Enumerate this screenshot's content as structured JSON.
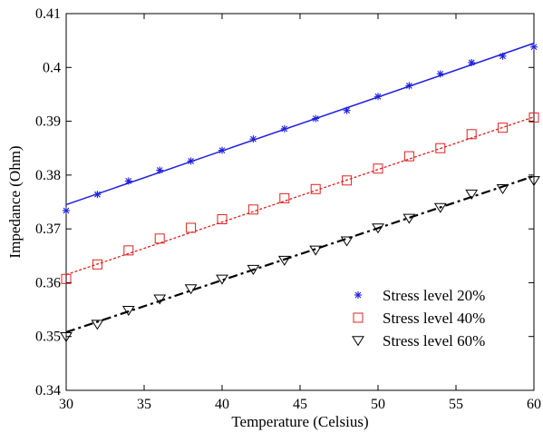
{
  "chart_data": {
    "type": "scatter",
    "title": "",
    "xlabel": "Temperature (Celsius)",
    "ylabel": "Impedance (Ohm)",
    "xlim": [
      30,
      60
    ],
    "ylim": [
      0.34,
      0.41
    ],
    "xticks": [
      30,
      35,
      40,
      45,
      50,
      55,
      60
    ],
    "xtick_labels": [
      "30",
      "35",
      "40",
      "45",
      "50",
      "55",
      "60"
    ],
    "yticks": [
      0.34,
      0.35,
      0.36,
      0.37,
      0.38,
      0.39,
      0.4,
      0.41
    ],
    "ytick_labels": [
      "0.34",
      "0.35",
      "0.36",
      "0.37",
      "0.38",
      "0.39",
      "0.4",
      "0.41"
    ],
    "grid": false,
    "legend_position": "lower-right",
    "x": [
      30,
      32,
      34,
      36,
      38,
      40,
      42,
      44,
      46,
      48,
      50,
      52,
      54,
      56,
      58,
      60
    ],
    "series": [
      {
        "name": "Stress level 20%",
        "marker": "star",
        "color": "#1f1fe0",
        "fit_line_style": "solid",
        "values": [
          0.3734,
          0.3764,
          0.3789,
          0.3809,
          0.3826,
          0.3846,
          0.3867,
          0.3886,
          0.3905,
          0.392,
          0.3946,
          0.3966,
          0.3988,
          0.4009,
          0.4021,
          0.4038
        ],
        "fit": [
          0.3745,
          0.4045
        ]
      },
      {
        "name": "Stress level 40%",
        "marker": "square",
        "color": "#e02020",
        "fit_line_style": "dashed",
        "values": [
          0.3607,
          0.3634,
          0.366,
          0.3682,
          0.3702,
          0.3718,
          0.3736,
          0.3757,
          0.3774,
          0.379,
          0.3812,
          0.3835,
          0.385,
          0.3876,
          0.3888,
          0.3907
        ],
        "fit": [
          0.3615,
          0.3908
        ]
      },
      {
        "name": "Stress level 60%",
        "marker": "triangle-down",
        "color": "#000000",
        "fit_line_style": "dash-dot",
        "values": [
          0.35,
          0.3523,
          0.3549,
          0.357,
          0.3589,
          0.3607,
          0.3625,
          0.3642,
          0.3661,
          0.3678,
          0.3702,
          0.372,
          0.374,
          0.3765,
          0.3775,
          0.379
        ],
        "fit": [
          0.3508,
          0.3798
        ]
      }
    ]
  }
}
